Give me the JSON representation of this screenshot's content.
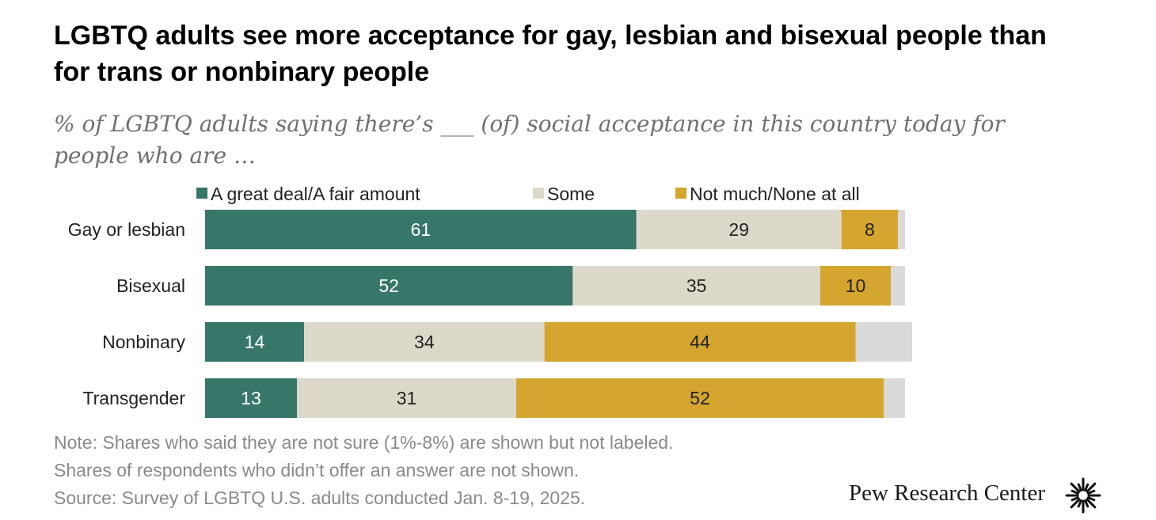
{
  "header": {
    "title": "LGBTQ adults see more acceptance for gay, lesbian and bisexual people than for trans or nonbinary people",
    "subtitle": "% of LGBTQ adults saying there’s ___ (of) social acceptance in this country today for people who are …"
  },
  "chart_data": {
    "type": "bar",
    "orientation": "horizontal",
    "stacked": true,
    "categories": [
      "Gay or lesbian",
      "Bisexual",
      "Nonbinary",
      "Transgender"
    ],
    "series": [
      {
        "name": "A great deal/A fair amount",
        "values": [
          61,
          52,
          14,
          13
        ],
        "color": "#37776a",
        "label_color": "#ffffff"
      },
      {
        "name": "Some",
        "values": [
          29,
          35,
          34,
          31
        ],
        "color": "#dcd9cb",
        "label_color": "#222222"
      },
      {
        "name": "Not much/None at all",
        "values": [
          8,
          10,
          44,
          52
        ],
        "color": "#d4a52f",
        "label_color": "#222222"
      }
    ],
    "unlabeled_remainder": {
      "name": "Not sure",
      "values": [
        1,
        2,
        8,
        3
      ],
      "color": "#dadada"
    },
    "xlim": [
      0,
      100
    ],
    "legend_position": "top",
    "grid": false
  },
  "footer": {
    "notes": [
      "Note: Shares who said they are not sure (1%-8%) are shown but not labeled.",
      "Shares of respondents who didn’t offer an answer are not shown.",
      "Source: Survey of LGBTQ U.S. adults conducted Jan. 8-19, 2025."
    ],
    "brand": "Pew Research Center"
  }
}
